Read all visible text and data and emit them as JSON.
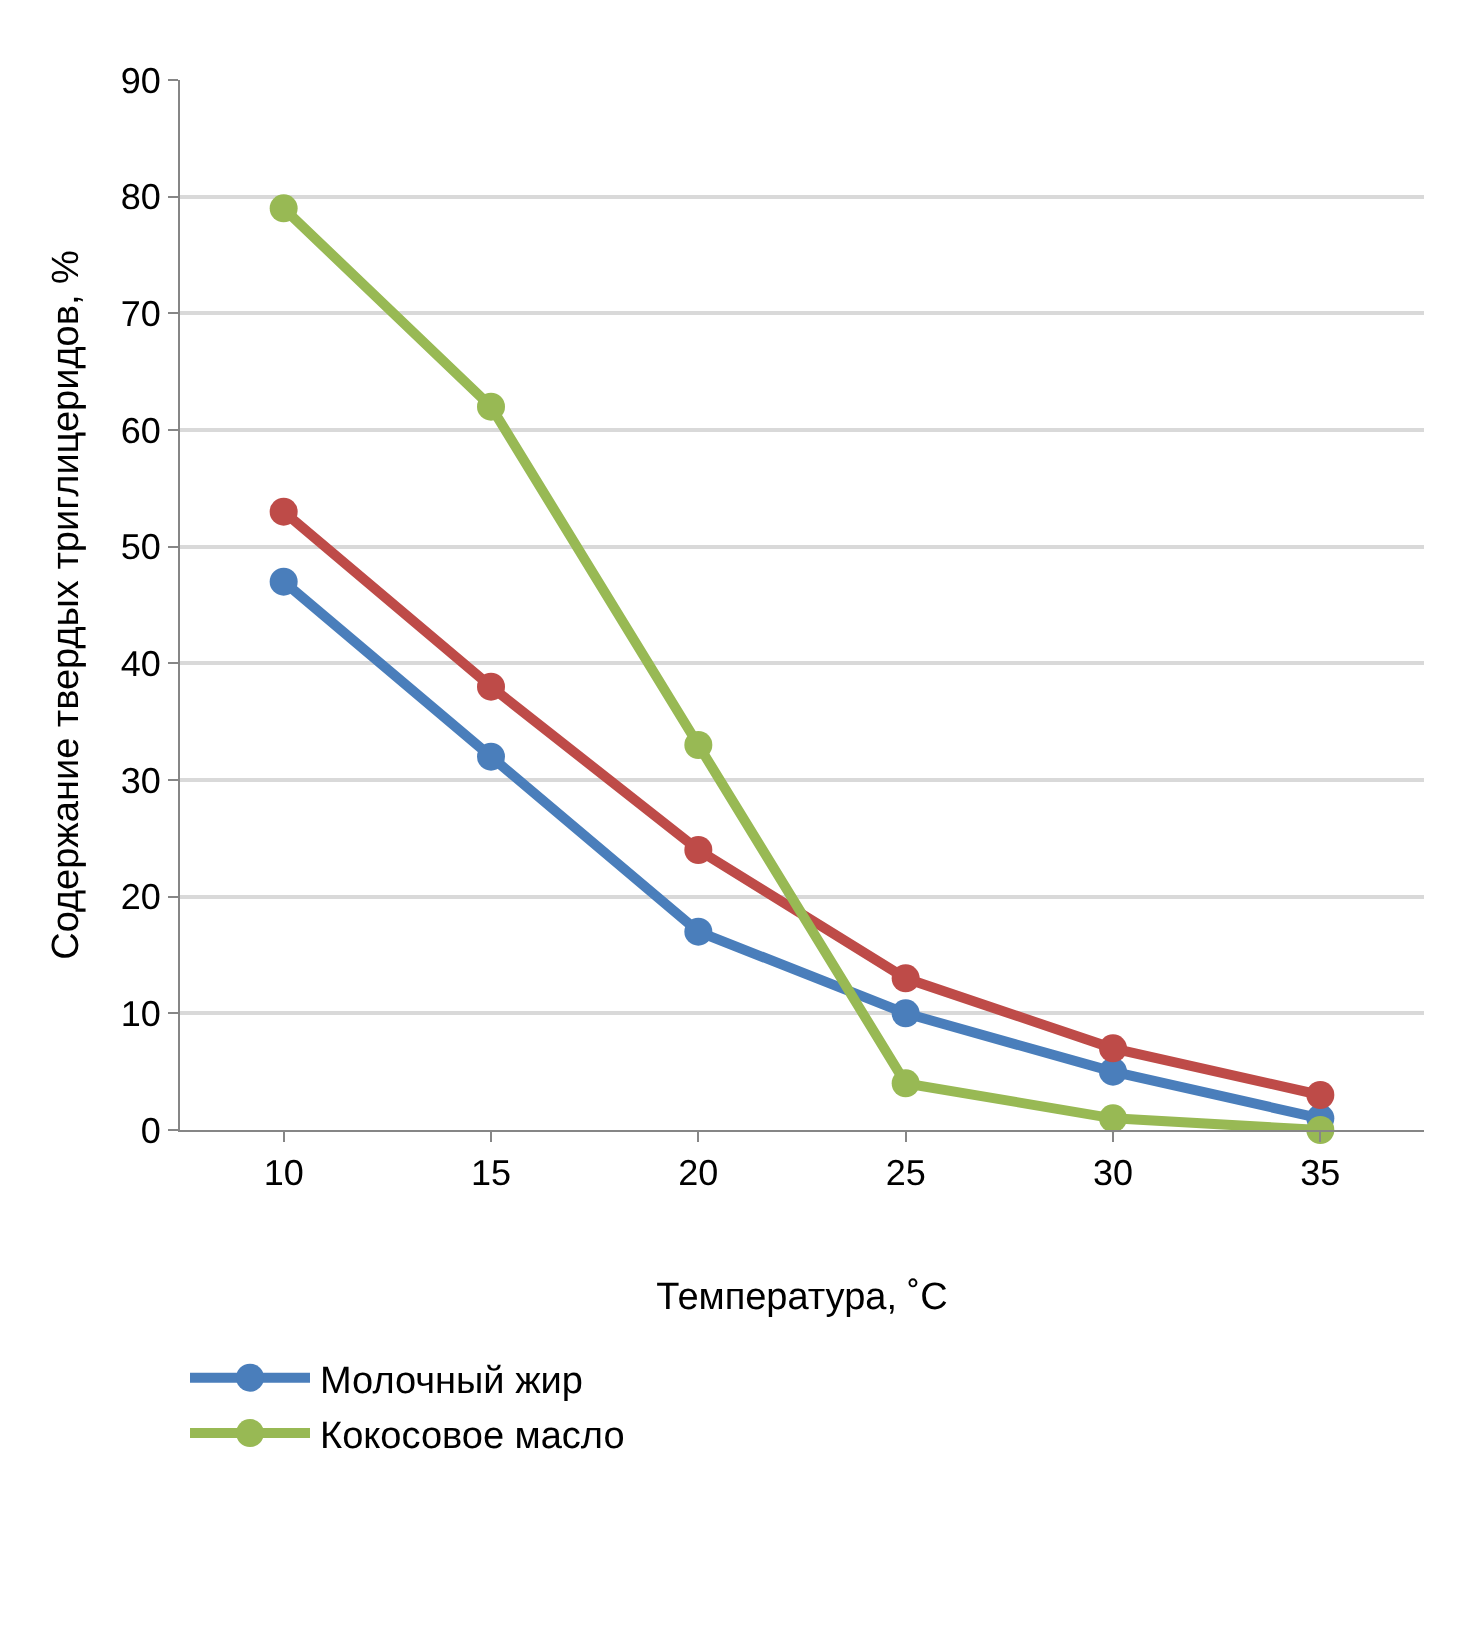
{
  "chart_data": {
    "type": "line",
    "xlabel": "Температура, ˚С",
    "ylabel": "Содержание твердых триглицеридов, %",
    "categories": [
      "10",
      "15",
      "20",
      "25",
      "30",
      "35"
    ],
    "series": [
      {
        "name": "Молочный жир",
        "color": "#4a7ebb",
        "values": [
          47,
          32,
          17,
          10,
          5,
          1
        ]
      },
      {
        "color": "#be4b48",
        "values": [
          53,
          38,
          24,
          13,
          7,
          3
        ]
      },
      {
        "name": "Кокосовое масло",
        "color": "#98b954",
        "values": [
          79,
          62,
          33,
          4,
          1,
          0
        ]
      }
    ],
    "ylim": [
      0,
      90
    ],
    "yticks": [
      0,
      10,
      20,
      30,
      40,
      50,
      60,
      70,
      80,
      90
    ],
    "grid": "y",
    "legend": "bottom",
    "marker": "circle",
    "line_style": "solid"
  }
}
